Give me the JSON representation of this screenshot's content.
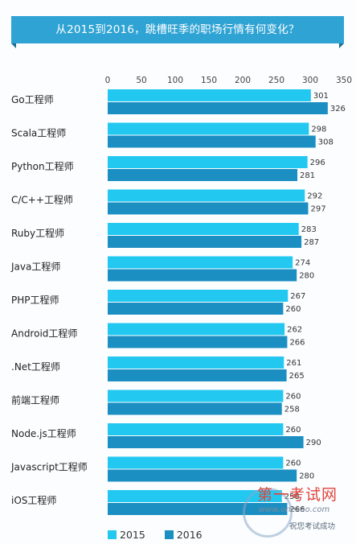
{
  "header": {
    "title": "从2015到2016，跳槽旺季的职场行情有何变化？"
  },
  "colors": {
    "banner": "#2fa3d4",
    "banner_dark": "#1b6f93",
    "series_2015": "#22c8f0",
    "series_2016": "#1b8fc2"
  },
  "chart_data": {
    "type": "bar",
    "orientation": "horizontal",
    "title": "从2015到2016，跳槽旺季的职场行情有何变化？",
    "categories": [
      "Go工程师",
      "Scala工程师",
      "Python工程师",
      "C/C++工程师",
      "Ruby工程师",
      "Java工程师",
      "PHP工程师",
      "Android工程师",
      ".Net工程师",
      "前端工程师",
      "Node.js工程师",
      "Javascript工程师",
      "iOS工程师"
    ],
    "series": [
      {
        "name": "2015",
        "color": "#22c8f0",
        "values": [
          301,
          298,
          296,
          292,
          283,
          274,
          267,
          262,
          261,
          260,
          260,
          260,
          258
        ]
      },
      {
        "name": "2016",
        "color": "#1b8fc2",
        "values": [
          326,
          308,
          281,
          297,
          287,
          280,
          260,
          266,
          265,
          258,
          290,
          280,
          266
        ]
      }
    ],
    "xlim": [
      0,
      350
    ],
    "xticks": [
      0,
      50,
      100,
      150,
      200,
      250,
      300,
      350
    ],
    "data_labels": true,
    "legend_position": "bottom"
  },
  "legend": {
    "items": [
      "2015",
      "2016"
    ]
  },
  "watermark": {
    "title": "第一考试网",
    "url": "www.onekao.com",
    "subtitle": "祝您考试成功"
  }
}
